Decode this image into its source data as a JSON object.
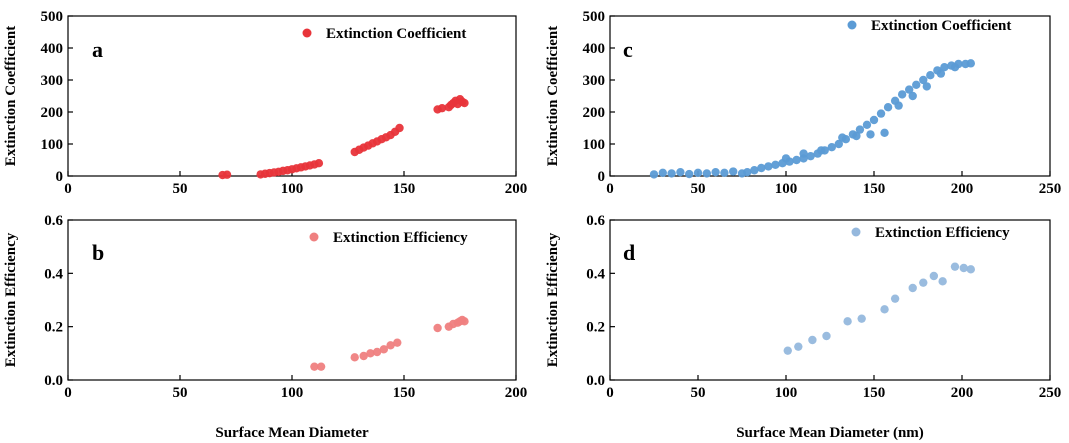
{
  "chart_data": [
    {
      "panel": "a",
      "type": "scatter",
      "title": "",
      "xlabel": "",
      "ylabel": "Extinction Coefficient",
      "xlim": [
        0,
        200
      ],
      "ylim": [
        0,
        500
      ],
      "xticks": [
        0,
        50,
        100,
        150,
        200
      ],
      "yticks": [
        0,
        100,
        200,
        300,
        400,
        500
      ],
      "legend_position": "top-right",
      "series": [
        {
          "name": "Extinction Coefficient",
          "color": "#e8343a",
          "x": [
            69,
            71,
            86,
            88,
            90,
            92,
            94,
            96,
            98,
            100,
            102,
            104,
            106,
            108,
            110,
            112,
            128,
            130,
            132,
            134,
            136,
            138,
            140,
            142,
            144,
            146,
            148,
            165,
            167,
            170,
            171,
            172,
            173,
            174,
            175,
            176,
            177
          ],
          "y": [
            3,
            4,
            5,
            7,
            9,
            11,
            13,
            16,
            18,
            21,
            24,
            27,
            30,
            33,
            36,
            40,
            75,
            82,
            89,
            95,
            102,
            108,
            115,
            121,
            128,
            138,
            150,
            208,
            212,
            215,
            222,
            228,
            235,
            225,
            240,
            232,
            228
          ]
        }
      ]
    },
    {
      "panel": "b",
      "type": "scatter",
      "title": "",
      "xlabel": "Surface Mean Diameter",
      "ylabel": "Extinction Efficiency",
      "xlim": [
        0,
        200
      ],
      "ylim": [
        0,
        0.6
      ],
      "xticks": [
        0,
        50,
        100,
        150,
        200
      ],
      "yticks": [
        0.0,
        0.2,
        0.4,
        0.6
      ],
      "legend_position": "top-right",
      "series": [
        {
          "name": "Extinction Efficiency",
          "color": "#ef8080",
          "x": [
            110,
            113,
            128,
            132,
            135,
            138,
            141,
            144,
            147,
            165,
            170,
            172,
            174,
            175,
            176,
            177
          ],
          "y": [
            0.05,
            0.05,
            0.085,
            0.09,
            0.1,
            0.105,
            0.115,
            0.13,
            0.14,
            0.195,
            0.2,
            0.21,
            0.215,
            0.22,
            0.225,
            0.22
          ]
        }
      ]
    },
    {
      "panel": "c",
      "type": "scatter",
      "title": "",
      "xlabel": "",
      "ylabel": "Extinction Coefficient",
      "xlim": [
        0,
        250
      ],
      "ylim": [
        0,
        500
      ],
      "xticks": [
        0,
        50,
        100,
        150,
        200,
        250
      ],
      "yticks": [
        0,
        100,
        200,
        300,
        400,
        500
      ],
      "legend_position": "top-right",
      "series": [
        {
          "name": "Extinction Coefficient",
          "color": "#5b9bd5",
          "x": [
            25,
            30,
            35,
            40,
            45,
            50,
            55,
            60,
            65,
            70,
            75,
            78,
            82,
            86,
            90,
            94,
            98,
            102,
            106,
            110,
            114,
            118,
            122,
            126,
            130,
            134,
            138,
            142,
            146,
            150,
            154,
            158,
            162,
            166,
            170,
            174,
            178,
            182,
            186,
            190,
            194,
            198,
            202,
            205,
            132,
            140,
            148,
            156,
            164,
            172,
            180,
            188,
            196,
            110,
            120,
            100
          ],
          "y": [
            5,
            10,
            8,
            12,
            6,
            10,
            8,
            12,
            10,
            14,
            8,
            12,
            18,
            25,
            30,
            35,
            40,
            45,
            50,
            55,
            62,
            70,
            80,
            90,
            100,
            115,
            130,
            145,
            160,
            175,
            195,
            215,
            235,
            255,
            270,
            285,
            300,
            315,
            330,
            340,
            345,
            350,
            350,
            352,
            120,
            125,
            130,
            135,
            220,
            250,
            280,
            320,
            340,
            70,
            80,
            55
          ]
        }
      ]
    },
    {
      "panel": "d",
      "type": "scatter",
      "title": "",
      "xlabel": "Surface Mean Diameter (nm)",
      "ylabel": "Extinction Efficiency",
      "xlim": [
        0,
        250
      ],
      "ylim": [
        0,
        0.6
      ],
      "xticks": [
        0,
        50,
        100,
        150,
        200,
        250
      ],
      "yticks": [
        0.0,
        0.2,
        0.4,
        0.6
      ],
      "legend_position": "top-right",
      "series": [
        {
          "name": "Extinction Efficiency",
          "color": "#95b8dd",
          "x": [
            101,
            107,
            115,
            123,
            135,
            143,
            156,
            162,
            172,
            178,
            184,
            189,
            196,
            201,
            205
          ],
          "y": [
            0.11,
            0.125,
            0.15,
            0.165,
            0.22,
            0.23,
            0.265,
            0.305,
            0.345,
            0.365,
            0.39,
            0.37,
            0.425,
            0.42,
            0.415
          ]
        }
      ]
    }
  ]
}
